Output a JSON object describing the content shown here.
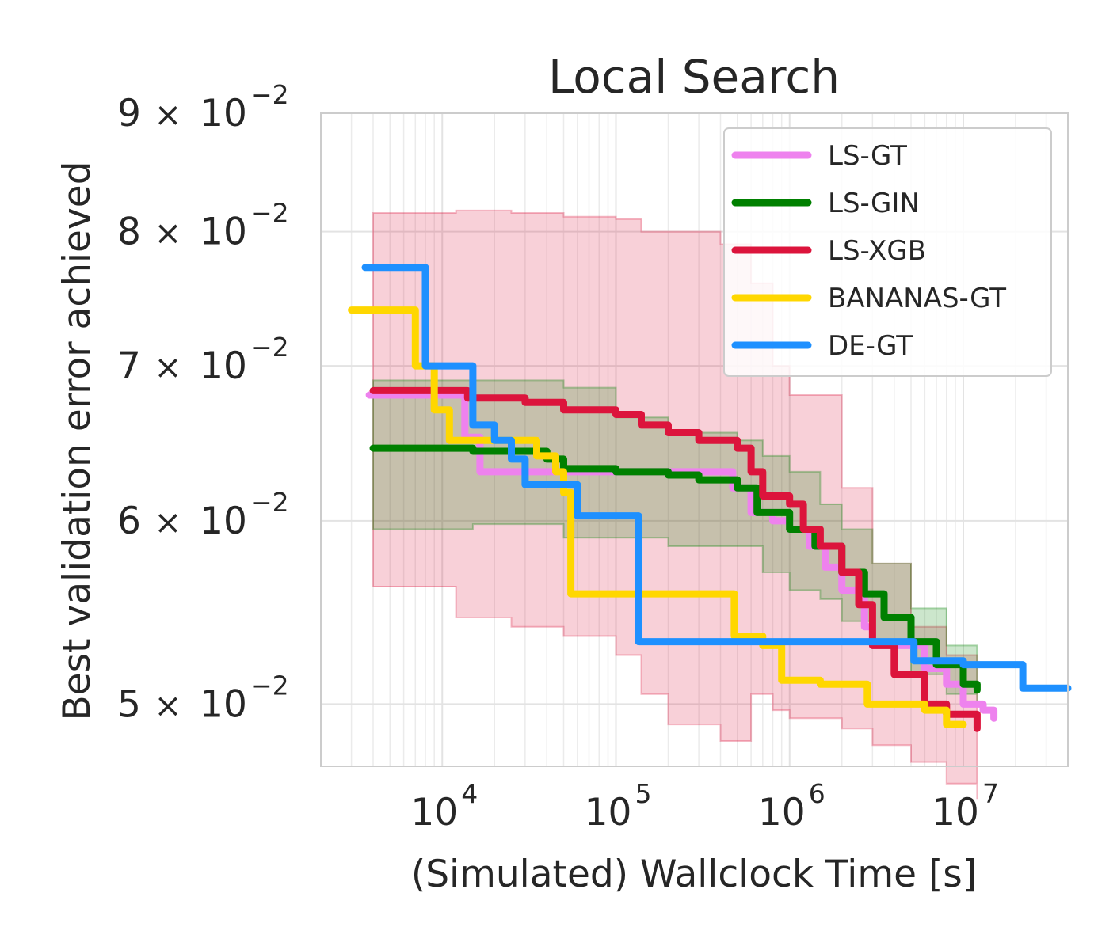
{
  "chart_data": {
    "type": "line",
    "title": "Local Search",
    "xlabel": "(Simulated) Wallclock Time [s]",
    "ylabel": "Best validation error achieved",
    "x_scale": "log",
    "y_scale": "log",
    "xlim": [
      2000,
      40000000
    ],
    "ylim": [
      0.047,
      0.09
    ],
    "x_ticks": [
      {
        "value": 10000,
        "base": "10",
        "exp": "4"
      },
      {
        "value": 100000,
        "base": "10",
        "exp": "5"
      },
      {
        "value": 1000000,
        "base": "10",
        "exp": "6"
      },
      {
        "value": 10000000,
        "base": "10",
        "exp": "7"
      }
    ],
    "y_ticks": [
      {
        "value": 0.09,
        "mant": "9",
        "base": "10",
        "exp": "−2"
      },
      {
        "value": 0.08,
        "mant": "8",
        "base": "10",
        "exp": "−2"
      },
      {
        "value": 0.07,
        "mant": "7",
        "base": "10",
        "exp": "−2"
      },
      {
        "value": 0.06,
        "mant": "6",
        "base": "10",
        "exp": "−2"
      },
      {
        "value": 0.05,
        "mant": "5",
        "base": "10",
        "exp": "−2"
      }
    ],
    "grid": true,
    "legend_position": "top-right",
    "series": [
      {
        "name": "LS-GT",
        "color": "#ee82ee",
        "points": [
          [
            3800,
            0.068
          ],
          [
            11000,
            0.068
          ],
          [
            13500,
            0.0652
          ],
          [
            16500,
            0.063
          ],
          [
            450000,
            0.063
          ],
          [
            470000,
            0.062
          ],
          [
            600000,
            0.0605
          ],
          [
            800000,
            0.06
          ],
          [
            1000000,
            0.0595
          ],
          [
            1300000,
            0.0585
          ],
          [
            1600000,
            0.0573
          ],
          [
            2000000,
            0.056
          ],
          [
            2700000,
            0.054
          ],
          [
            3000000,
            0.053
          ],
          [
            5000000,
            0.053
          ],
          [
            6000000,
            0.0518
          ],
          [
            8000000,
            0.051
          ],
          [
            10000000,
            0.05
          ],
          [
            13000000,
            0.0497
          ],
          [
            15000000,
            0.0493
          ]
        ]
      },
      {
        "name": "LS-GIN",
        "color": "#008000",
        "points": [
          [
            4000,
            0.0645
          ],
          [
            15000,
            0.0643
          ],
          [
            40000,
            0.0638
          ],
          [
            50000,
            0.0632
          ],
          [
            100000,
            0.063
          ],
          [
            200000,
            0.0628
          ],
          [
            300000,
            0.0625
          ],
          [
            500000,
            0.062
          ],
          [
            650000,
            0.0605
          ],
          [
            1000000,
            0.0595
          ],
          [
            1400000,
            0.0585
          ],
          [
            2000000,
            0.057
          ],
          [
            2700000,
            0.0558
          ],
          [
            3500000,
            0.0545
          ],
          [
            5000000,
            0.0532
          ],
          [
            7000000,
            0.052
          ],
          [
            10000000,
            0.051
          ],
          [
            12000000,
            0.0507
          ]
        ]
      },
      {
        "name": "LS-XGB",
        "color": "#dc143c",
        "points": [
          [
            4000,
            0.0683
          ],
          [
            11000,
            0.0683
          ],
          [
            14000,
            0.0678
          ],
          [
            30000,
            0.0675
          ],
          [
            50000,
            0.067
          ],
          [
            100000,
            0.0667
          ],
          [
            140000,
            0.066
          ],
          [
            200000,
            0.0655
          ],
          [
            300000,
            0.065
          ],
          [
            500000,
            0.0645
          ],
          [
            600000,
            0.063
          ],
          [
            700000,
            0.0615
          ],
          [
            1000000,
            0.061
          ],
          [
            1200000,
            0.0595
          ],
          [
            1500000,
            0.0585
          ],
          [
            2000000,
            0.057
          ],
          [
            2500000,
            0.0552
          ],
          [
            3000000,
            0.053
          ],
          [
            4000000,
            0.0515
          ],
          [
            6000000,
            0.05
          ],
          [
            8000000,
            0.0495
          ],
          [
            12000000,
            0.0488
          ]
        ]
      },
      {
        "name": "BANANAS-GT",
        "color": "#ffd700",
        "points": [
          [
            3000,
            0.074
          ],
          [
            7000,
            0.07
          ],
          [
            9000,
            0.067
          ],
          [
            11000,
            0.065
          ],
          [
            25000,
            0.065
          ],
          [
            35000,
            0.064
          ],
          [
            45000,
            0.063
          ],
          [
            50000,
            0.0617
          ],
          [
            55000,
            0.0558
          ],
          [
            450000,
            0.0558
          ],
          [
            480000,
            0.0535
          ],
          [
            700000,
            0.053
          ],
          [
            900000,
            0.0512
          ],
          [
            1500000,
            0.051
          ],
          [
            2500000,
            0.051
          ],
          [
            2800000,
            0.05
          ],
          [
            6000000,
            0.0497
          ],
          [
            8000000,
            0.049
          ],
          [
            10000000,
            0.049
          ]
        ]
      },
      {
        "name": "DE-GT",
        "color": "#1e90ff",
        "points": [
          [
            3600,
            0.0772
          ],
          [
            8000,
            0.07
          ],
          [
            12000,
            0.07
          ],
          [
            15000,
            0.066
          ],
          [
            20000,
            0.065
          ],
          [
            25000,
            0.0638
          ],
          [
            30000,
            0.0622
          ],
          [
            50000,
            0.0622
          ],
          [
            60000,
            0.0603
          ],
          [
            120000,
            0.0603
          ],
          [
            135000,
            0.0532
          ],
          [
            5000000,
            0.0532
          ],
          [
            5200000,
            0.0522
          ],
          [
            8000000,
            0.0522
          ],
          [
            10000000,
            0.052
          ],
          [
            20000000,
            0.052
          ],
          [
            22000000,
            0.0508
          ],
          [
            40000000,
            0.0508
          ]
        ]
      }
    ],
    "bands": [
      {
        "series": "LS-XGB",
        "color": "#dc143c",
        "points": [
          [
            4000,
            0.0815,
            0.0562
          ],
          [
            12000,
            0.0817,
            0.0545
          ],
          [
            25000,
            0.0815,
            0.054
          ],
          [
            50000,
            0.0812,
            0.0535
          ],
          [
            100000,
            0.081,
            0.0525
          ],
          [
            140000,
            0.08,
            0.0505
          ],
          [
            200000,
            0.08,
            0.049
          ],
          [
            400000,
            0.079,
            0.0482
          ],
          [
            600000,
            0.076,
            0.0505
          ],
          [
            800000,
            0.07,
            0.0497
          ],
          [
            1000000,
            0.068,
            0.0493
          ],
          [
            2000000,
            0.062,
            0.0488
          ],
          [
            3000000,
            0.0575,
            0.048
          ],
          [
            5000000,
            0.054,
            0.0472
          ],
          [
            8000000,
            0.0525,
            0.0462
          ],
          [
            12000000,
            0.051,
            0.0455
          ]
        ]
      },
      {
        "series": "LS-GIN",
        "color": "#008000",
        "points": [
          [
            4000,
            0.069,
            0.0595
          ],
          [
            15000,
            0.069,
            0.0598
          ],
          [
            50000,
            0.0685,
            0.059
          ],
          [
            100000,
            0.0665,
            0.059
          ],
          [
            200000,
            0.0655,
            0.0585
          ],
          [
            500000,
            0.065,
            0.0585
          ],
          [
            700000,
            0.064,
            0.057
          ],
          [
            1000000,
            0.063,
            0.056
          ],
          [
            1500000,
            0.061,
            0.0555
          ],
          [
            2000000,
            0.0595,
            0.0543
          ],
          [
            3000000,
            0.0575,
            0.0532
          ],
          [
            5000000,
            0.055,
            0.0515
          ],
          [
            8000000,
            0.053,
            0.0505
          ],
          [
            12000000,
            0.052,
            0.05
          ]
        ]
      }
    ]
  }
}
